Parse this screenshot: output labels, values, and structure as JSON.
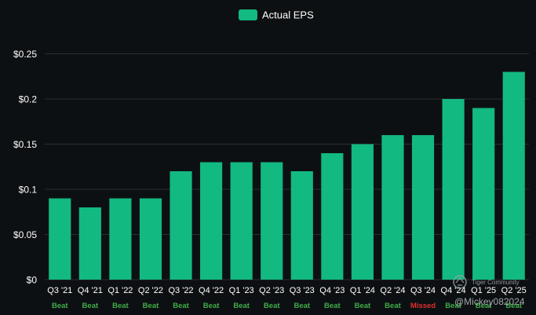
{
  "chart_data": {
    "type": "bar",
    "title": "",
    "xlabel": "",
    "ylabel": "",
    "ylim": [
      0,
      0.25
    ],
    "yticks": [
      0,
      0.05,
      0.1,
      0.15,
      0.2,
      0.25
    ],
    "ytick_labels": [
      "$0",
      "$0.05",
      "$0.1",
      "$0.15",
      "$0.2",
      "$0.25"
    ],
    "grid": true,
    "legend_position": "top-center",
    "categories": [
      "Q3 '21",
      "Q4 '21",
      "Q1 '22",
      "Q2 '22",
      "Q3 '22",
      "Q4 '22",
      "Q1 '23",
      "Q2 '23",
      "Q3 '23",
      "Q4 '23",
      "Q1 '24",
      "Q2 '24",
      "Q3 '24",
      "Q4 '24",
      "Q1 '25",
      "Q2 '25"
    ],
    "series": [
      {
        "name": "Actual EPS",
        "values": [
          0.09,
          0.08,
          0.09,
          0.09,
          0.12,
          0.13,
          0.13,
          0.13,
          0.12,
          0.14,
          0.15,
          0.16,
          0.16,
          0.2,
          0.19,
          0.23
        ]
      }
    ],
    "results": [
      "Beat",
      "Beat",
      "Beat",
      "Beat",
      "Beat",
      "Beat",
      "Beat",
      "Beat",
      "Beat",
      "Beat",
      "Beat",
      "Beat",
      "Missed",
      "Beat",
      "Beat",
      "Beat"
    ]
  },
  "colors": {
    "background": "#0d1012",
    "bar": "#12b981",
    "grid": "#2a2e31",
    "axis_text": "#ffffff",
    "beat": "#3fae49",
    "missed": "#e0302c"
  },
  "watermark": {
    "brand": "Tiger Community",
    "handle": "@Mickey082024"
  }
}
